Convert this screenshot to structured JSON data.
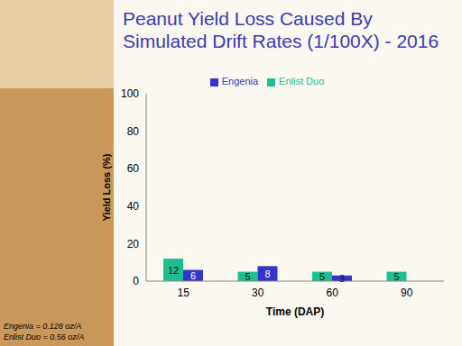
{
  "chart_data": {
    "type": "bar",
    "title": "Peanut Yield Loss Caused By Simulated Drift Rates (1/100X) - 2016",
    "x_label": "Time (DAP)",
    "y_label": "Yield Loss (%)",
    "categories": [
      "15",
      "30",
      "60",
      "90"
    ],
    "series": [
      {
        "name": "Enlist Duo",
        "color": "#1dbf8e",
        "values": [
          12,
          5,
          5,
          5
        ]
      },
      {
        "name": "Engenia",
        "color": "#3535c8",
        "values": [
          6,
          8,
          3,
          0
        ]
      }
    ],
    "ylim": [
      0,
      100
    ],
    "yticks": [
      0,
      20,
      40,
      60,
      80,
      100
    ],
    "grid": false,
    "legend": "top",
    "data_labels": true,
    "annotations": [
      "Engenia = 0.128 oz/A",
      "Enlist Duo = 0.56 oz/A"
    ]
  }
}
